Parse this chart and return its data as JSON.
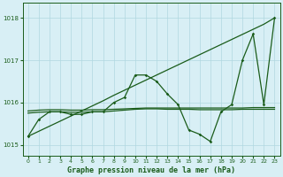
{
  "title": "Graphe pression niveau de la mer (hPa)",
  "background_color": "#d8eff5",
  "grid_color": "#b0d8e0",
  "line_color": "#1a5c1a",
  "xlim": [
    -0.5,
    23.5
  ],
  "ylim": [
    1014.75,
    1018.35
  ],
  "yticks": [
    1015,
    1016,
    1017,
    1018
  ],
  "xticks": [
    0,
    1,
    2,
    3,
    4,
    5,
    6,
    7,
    8,
    9,
    10,
    11,
    12,
    13,
    14,
    15,
    16,
    17,
    18,
    19,
    20,
    21,
    22,
    23
  ],
  "series_diagonal": [
    1015.2,
    1015.32,
    1015.44,
    1015.56,
    1015.68,
    1015.8,
    1015.92,
    1016.04,
    1016.17,
    1016.29,
    1016.41,
    1016.53,
    1016.65,
    1016.77,
    1016.89,
    1017.01,
    1017.13,
    1017.25,
    1017.37,
    1017.49,
    1017.61,
    1017.73,
    1017.85,
    1018.0
  ],
  "series_flat1": [
    1015.8,
    1015.82,
    1015.83,
    1015.83,
    1015.82,
    1015.82,
    1015.83,
    1015.83,
    1015.84,
    1015.85,
    1015.86,
    1015.87,
    1015.87,
    1015.87,
    1015.87,
    1015.87,
    1015.87,
    1015.87,
    1015.87,
    1015.87,
    1015.87,
    1015.88,
    1015.88,
    1015.88
  ],
  "series_flat2": [
    1015.75,
    1015.77,
    1015.78,
    1015.78,
    1015.77,
    1015.77,
    1015.78,
    1015.78,
    1015.8,
    1015.82,
    1015.84,
    1015.85,
    1015.85,
    1015.84,
    1015.84,
    1015.84,
    1015.83,
    1015.83,
    1015.83,
    1015.83,
    1015.84,
    1015.84,
    1015.84,
    1015.84
  ],
  "series_wavy": [
    1015.2,
    1015.6,
    1015.78,
    1015.78,
    1015.72,
    1015.72,
    1015.78,
    1015.78,
    1016.0,
    1016.12,
    1016.65,
    1016.65,
    1016.5,
    1016.2,
    1015.95,
    1015.35,
    1015.25,
    1015.08,
    1015.78,
    1015.95,
    1017.0,
    1017.62,
    1015.95,
    1018.0
  ]
}
